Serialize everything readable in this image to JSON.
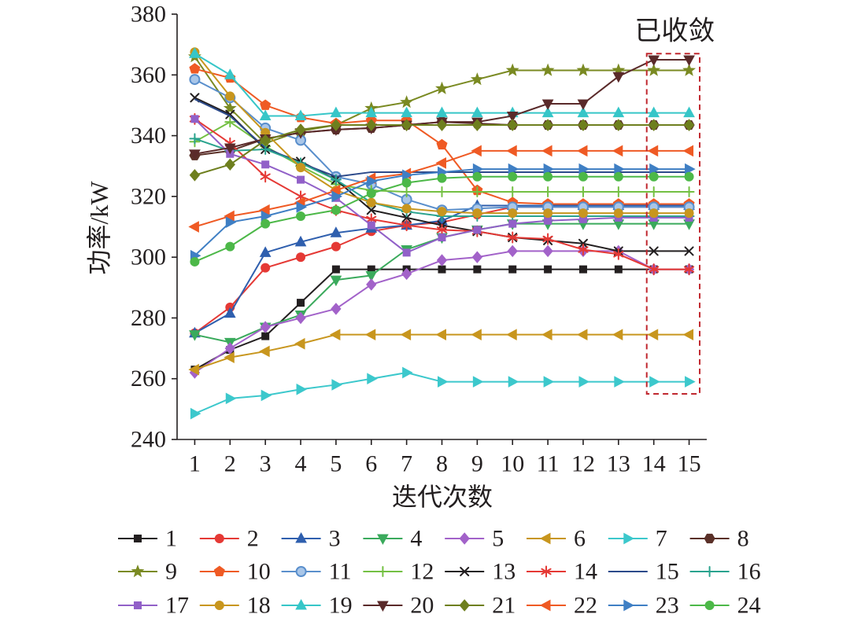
{
  "chart_data": {
    "type": "line",
    "title": "",
    "xlabel": "迭代次数",
    "ylabel": "功率/kW",
    "x": [
      1,
      2,
      3,
      4,
      5,
      6,
      7,
      8,
      9,
      10,
      11,
      12,
      13,
      14,
      15
    ],
    "xlim": [
      0.5,
      15.5
    ],
    "ylim": [
      240,
      380
    ],
    "yticks": [
      240,
      260,
      280,
      300,
      320,
      340,
      360,
      380
    ],
    "grid": false,
    "legend_position": "bottom",
    "annotation": {
      "text": "已收敛",
      "iterations": [
        14,
        15
      ],
      "y_range": [
        255,
        367
      ],
      "color": "#c0282f",
      "style": "dashed"
    },
    "series": [
      {
        "name": "1",
        "color": "#231f20",
        "marker": "square",
        "values": [
          263,
          269.5,
          274,
          285,
          296,
          296,
          296,
          296,
          296,
          296,
          296,
          296,
          296,
          296,
          296
        ]
      },
      {
        "name": "2",
        "color": "#e53935",
        "marker": "circle",
        "values": [
          275,
          283.5,
          296.5,
          300,
          303.5,
          308.5,
          310.5,
          311.5,
          314,
          316.5,
          316.5,
          316.5,
          316.5,
          316.5,
          316.5
        ]
      },
      {
        "name": "3",
        "color": "#2f5fae",
        "marker": "triangle-up",
        "values": [
          275,
          281.5,
          301.5,
          305,
          308,
          309.5,
          310.5,
          312,
          317,
          317,
          317,
          317,
          317,
          317,
          317
        ]
      },
      {
        "name": "4",
        "color": "#3aaa5c",
        "marker": "triangle-down",
        "values": [
          274.5,
          272,
          277,
          281,
          292.5,
          294,
          302.5,
          306.5,
          309,
          311,
          311,
          311,
          311,
          311,
          311
        ]
      },
      {
        "name": "5",
        "color": "#a262c9",
        "marker": "diamond",
        "values": [
          262,
          270,
          277,
          280,
          283,
          291,
          294.5,
          299,
          300,
          302,
          302,
          302,
          302,
          296,
          296
        ]
      },
      {
        "name": "6",
        "color": "#c8961e",
        "marker": "triangle-left",
        "values": [
          263,
          267,
          269,
          271.5,
          274.5,
          274.5,
          274.5,
          274.5,
          274.5,
          274.5,
          274.5,
          274.5,
          274.5,
          274.5,
          274.5
        ]
      },
      {
        "name": "7",
        "color": "#3cc8cc",
        "marker": "triangle-right",
        "values": [
          248.5,
          253.5,
          254.5,
          256.5,
          258,
          260,
          262,
          259,
          259,
          259,
          259,
          259,
          259,
          259,
          259
        ]
      },
      {
        "name": "8",
        "color": "#5a3028",
        "marker": "hexagon",
        "values": [
          333.5,
          335,
          339,
          341,
          342,
          342.5,
          343.5,
          344.5,
          344,
          343.5,
          343.5,
          343.5,
          343.5,
          343.5,
          343.5
        ]
      },
      {
        "name": "9",
        "color": "#7a8a22",
        "marker": "star",
        "values": [
          366,
          349,
          337.5,
          341.5,
          343.5,
          349,
          351,
          355.5,
          358.5,
          361.5,
          361.5,
          361.5,
          361.5,
          361.5,
          361.5
        ]
      },
      {
        "name": "10",
        "color": "#ef5a24",
        "marker": "pentagon",
        "values": [
          362,
          359,
          350,
          346,
          344,
          345,
          345,
          337,
          322,
          318,
          317.5,
          317.5,
          317.5,
          317.5,
          317.5
        ]
      },
      {
        "name": "11",
        "color": "#5a8fcc",
        "marker": "circle-shaded",
        "values": [
          358.5,
          352.5,
          342.5,
          338.5,
          326.5,
          324,
          319,
          315.5,
          316,
          316.5,
          316.5,
          316.5,
          316.5,
          316.5,
          316.5
        ]
      },
      {
        "name": "12",
        "color": "#74c043",
        "marker": "plus",
        "values": [
          338,
          344.5,
          336.5,
          330,
          324,
          322,
          321.5,
          321.5,
          321.5,
          321.5,
          321.5,
          321.5,
          321.5,
          321.5,
          321.5
        ]
      },
      {
        "name": "13",
        "color": "#231f20",
        "marker": "x",
        "values": [
          352.5,
          347,
          335.5,
          331.5,
          325.5,
          315.5,
          313,
          310.5,
          308.5,
          306.5,
          305.5,
          304.5,
          302,
          302,
          302
        ]
      },
      {
        "name": "14",
        "color": "#e53935",
        "marker": "asterisk",
        "values": [
          345.5,
          337.5,
          326.5,
          320,
          315.5,
          312.5,
          310.5,
          309,
          308.5,
          306.5,
          306,
          302.5,
          301,
          296,
          296
        ]
      },
      {
        "name": "15",
        "color": "#2c4a8a",
        "marker": "none",
        "values": [
          352,
          346.5,
          336,
          331,
          326.5,
          328,
          328,
          328,
          328,
          328,
          328,
          328,
          328,
          328,
          328
        ]
      },
      {
        "name": "16",
        "color": "#2aa38e",
        "marker": "plus",
        "values": [
          339,
          335,
          335.5,
          331,
          325.5,
          318,
          315,
          313.5,
          313.5,
          313.5,
          313.5,
          313.5,
          313.5,
          313.5,
          313.5
        ]
      },
      {
        "name": "17",
        "color": "#9160c8",
        "marker": "square",
        "values": [
          345.5,
          334,
          330.5,
          325.5,
          319.5,
          310.5,
          301.5,
          306.5,
          309,
          311,
          312,
          312.5,
          313,
          313,
          313
        ]
      },
      {
        "name": "18",
        "color": "#c8961e",
        "marker": "circle",
        "values": [
          367.5,
          353,
          341,
          329.5,
          322,
          318,
          316,
          315,
          314.5,
          314.5,
          314.5,
          314.5,
          314.5,
          314.5,
          314.5
        ]
      },
      {
        "name": "19",
        "color": "#36c6c8",
        "marker": "triangle-up",
        "values": [
          367,
          360,
          346.5,
          346.5,
          347.5,
          347.5,
          347.5,
          347.5,
          347.5,
          347.5,
          347.5,
          347.5,
          347.5,
          347.5,
          347.5
        ]
      },
      {
        "name": "20",
        "color": "#5a2a2a",
        "marker": "triangle-down",
        "values": [
          334,
          336,
          339,
          341,
          342,
          342.5,
          343.5,
          344.5,
          344.5,
          346.5,
          350.5,
          350.5,
          359.5,
          365,
          365
        ]
      },
      {
        "name": "21",
        "color": "#6e7f1e",
        "marker": "diamond",
        "values": [
          327,
          330.5,
          338.5,
          342,
          343.5,
          343.5,
          343.5,
          343.5,
          343.5,
          343.5,
          343.5,
          343.5,
          343.5,
          343.5,
          343.5
        ]
      },
      {
        "name": "22",
        "color": "#ef5a24",
        "marker": "triangle-left",
        "values": [
          310,
          313.5,
          315.5,
          318,
          322,
          326,
          327.5,
          331,
          335,
          335,
          335,
          335,
          335,
          335,
          335
        ]
      },
      {
        "name": "23",
        "color": "#3f7fc4",
        "marker": "triangle-right",
        "values": [
          300.5,
          311.5,
          313.5,
          316.5,
          320,
          325,
          327,
          328,
          329,
          329,
          329,
          329,
          329,
          329,
          329
        ]
      },
      {
        "name": "24",
        "color": "#4cb848",
        "marker": "circle",
        "values": [
          298.5,
          303.5,
          311,
          313.5,
          315.5,
          321,
          324.5,
          326,
          326.5,
          326.5,
          326.5,
          326.5,
          326.5,
          326.5,
          326.5
        ]
      }
    ]
  }
}
